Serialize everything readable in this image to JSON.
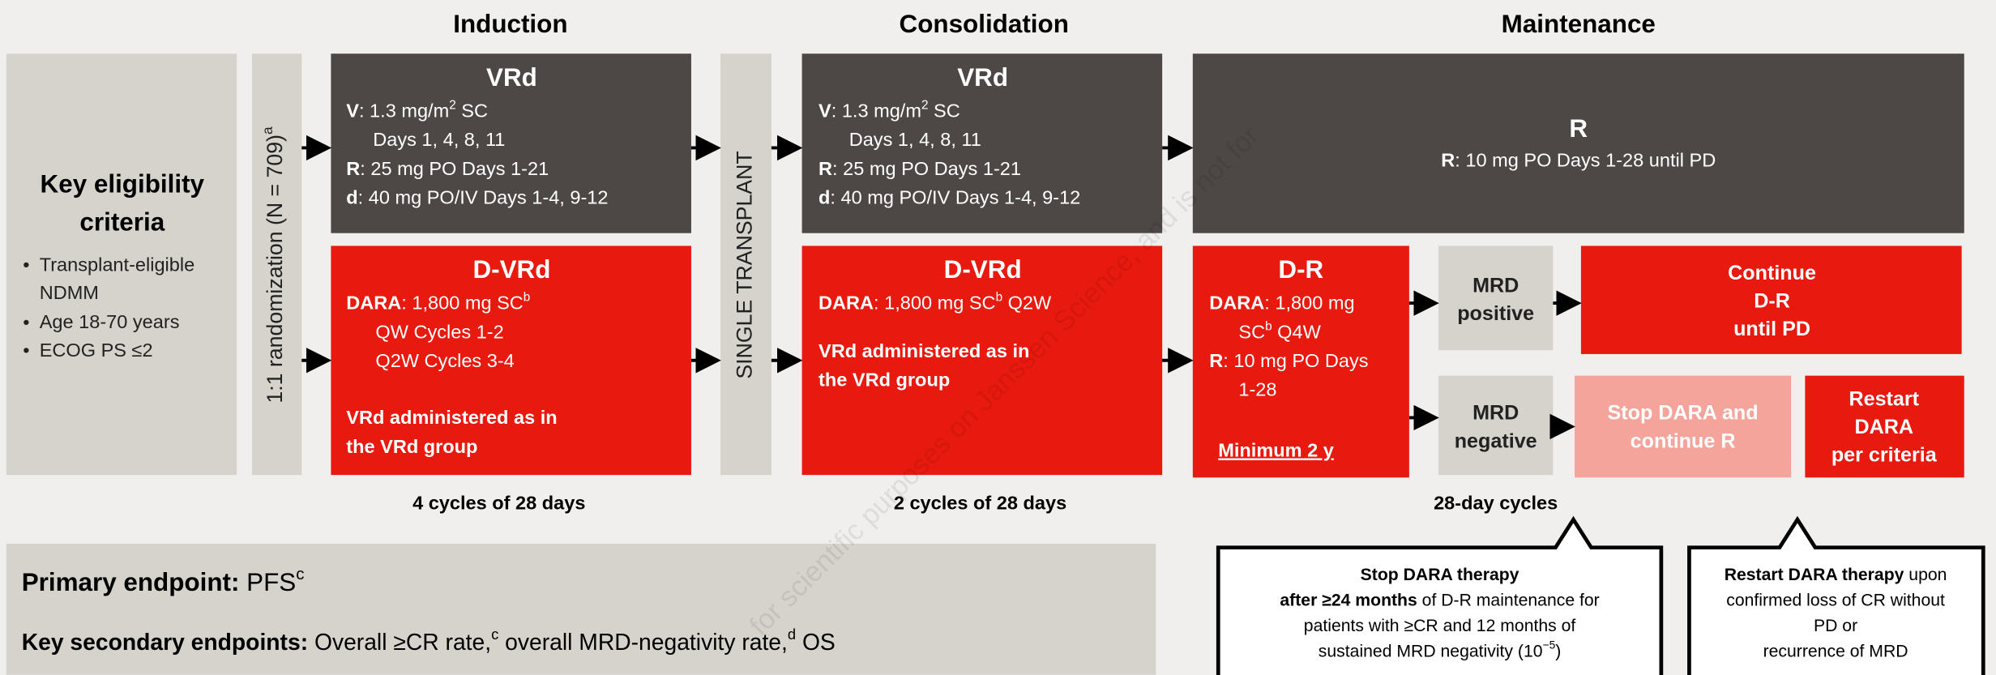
{
  "watermark": "for scientific purposes on Janssen Science, and is not for",
  "phases": [
    "Induction",
    "Consolidation",
    "Maintenance"
  ],
  "eligibility": {
    "title": [
      "Key eligibility",
      "criteria"
    ],
    "bullets": [
      [
        [
          "Transplant-eligible"
        ],
        [
          "NDMM"
        ]
      ],
      [
        [
          "Age 18-70 years"
        ]
      ],
      [
        [
          "ECOG PS ≤2"
        ]
      ]
    ]
  },
  "randomization": [
    "1:1 randomization (N = 709)",
    "a"
  ],
  "transplant": "SINGLE TRANSPLANT",
  "induction": {
    "vrd": {
      "title": "VRd",
      "lines": [
        [
          "V",
          ": 1.3 mg/m",
          "2",
          " SC"
        ],
        [
          "Days 1, 4, 8, 11"
        ],
        [
          "R",
          ": 25 mg PO Days 1-21"
        ],
        [
          "d",
          ": 40 mg PO/IV Days 1-4, 9-12"
        ]
      ]
    },
    "dvrd": {
      "title": "D-VRd",
      "lines": [
        [
          "DARA",
          ": 1,800 mg SC",
          "b"
        ],
        [
          "QW Cycles 1-2"
        ],
        [
          "Q2W Cycles 3-4"
        ],
        [
          "VRd administered as in"
        ],
        [
          "the VRd group"
        ]
      ]
    },
    "cycles": "4 cycles of 28 days"
  },
  "consolidation": {
    "vrd": {
      "title": "VRd",
      "lines": [
        [
          "V",
          ": 1.3 mg/m",
          "2",
          " SC"
        ],
        [
          "Days 1, 4, 8, 11"
        ],
        [
          "R",
          ": 25 mg PO Days 1-21"
        ],
        [
          "d",
          ": 40 mg PO/IV Days 1-4, 9-12"
        ]
      ]
    },
    "dvrd": {
      "title": "D-VRd",
      "lines": [
        [
          "DARA",
          ": 1,800 mg SC",
          "b",
          " Q2W"
        ],
        [
          "VRd administered as in"
        ],
        [
          "the VRd group"
        ]
      ]
    },
    "cycles": "2 cycles of 28 days"
  },
  "maintenance": {
    "r": {
      "title": "R",
      "lines": [
        [
          "R",
          ": 10 mg PO Days 1-28 until PD"
        ]
      ]
    },
    "dr": {
      "title": "D-R",
      "lines": [
        [
          "DARA",
          ": 1,800 mg"
        ],
        [
          "SC",
          "b",
          " Q4W"
        ],
        [
          "R",
          ": 10 mg PO Days"
        ],
        [
          "1-28"
        ],
        [
          "Minimum 2 y"
        ]
      ]
    },
    "mrd_positive": [
      [
        "MRD"
      ],
      [
        "positive"
      ]
    ],
    "mrd_negative": [
      [
        "MRD"
      ],
      [
        "negative"
      ]
    ],
    "continue": [
      [
        "Continue"
      ],
      [
        "D-R"
      ],
      [
        "until PD"
      ]
    ],
    "stop": [
      [
        "Stop DARA and"
      ],
      [
        "continue R"
      ]
    ],
    "restart": [
      [
        "Restart"
      ],
      [
        "DARA"
      ],
      [
        "per criteria"
      ]
    ],
    "cycles": "28-day cycles"
  },
  "endpoints": {
    "primary": [
      [
        "Primary endpoint:",
        " PFS",
        "c"
      ]
    ],
    "secondary": [
      [
        "Key secondary endpoints:",
        " Overall ≥CR rate,",
        "c",
        " overall MRD-negativity rate,",
        "d",
        " OS"
      ]
    ]
  },
  "callouts": {
    "stop": [
      [
        "Stop DARA therapy"
      ],
      [
        "after ≥24 months",
        " of D-R maintenance for"
      ],
      [
        "patients with ≥CR and 12 months of"
      ],
      [
        "sustained MRD negativity (10",
        "−5",
        ")"
      ]
    ],
    "restart": [
      [
        "Restart DARA therapy",
        " upon"
      ],
      [
        "confirmed loss of CR without"
      ],
      [
        "PD or"
      ],
      [
        "recurrence of MRD"
      ]
    ]
  }
}
